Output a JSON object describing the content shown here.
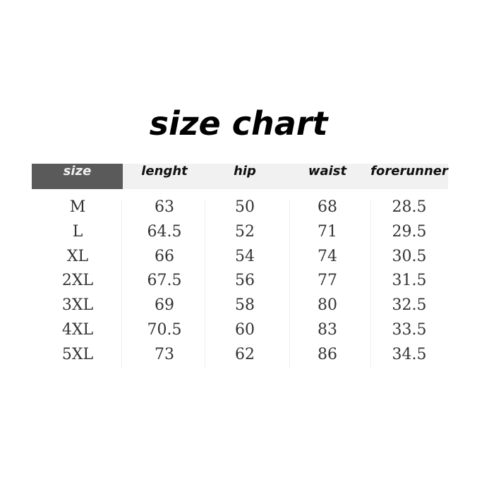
{
  "title": "size chart",
  "headers": [
    "size",
    "lenght",
    "hip",
    "waist",
    "forerunner"
  ],
  "rows": [
    [
      "M",
      "63",
      "50",
      "68",
      "28.5"
    ],
    [
      "L",
      "64.5",
      "52",
      "71",
      "29.5"
    ],
    [
      "XL",
      "66",
      "54",
      "74",
      "30.5"
    ],
    [
      "2XL",
      "67.5",
      "56",
      "77",
      "31.5"
    ],
    [
      "3XL",
      "69",
      "58",
      "80",
      "32.5"
    ],
    [
      "4XL",
      "70.5",
      "60",
      "83",
      "33.5"
    ],
    [
      "5XL",
      "73",
      "62",
      "86",
      "34.5"
    ]
  ],
  "colors": {
    "header_size_bg": "#5a5a5a",
    "header_bg": "#f1f1f1"
  }
}
